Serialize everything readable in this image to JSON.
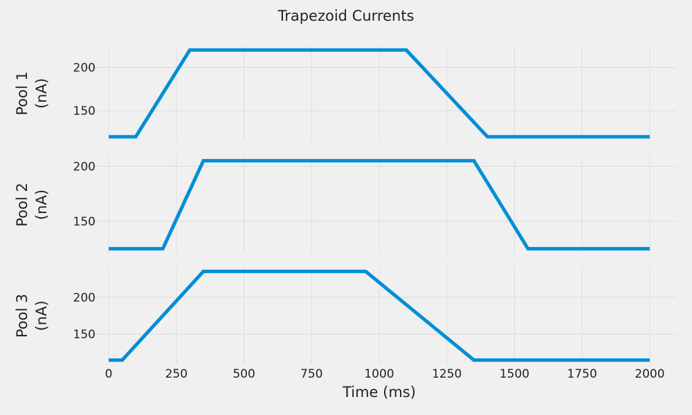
{
  "chart_data": {
    "type": "line",
    "title": "Trapezoid Currents",
    "xlabel": "Time (ms)",
    "xlim": [
      -100,
      2100
    ],
    "xticks": [
      0,
      250,
      500,
      750,
      1000,
      1250,
      1500,
      1750,
      2000
    ],
    "grid": true,
    "line_color": "#008fd5",
    "background": "#f0f0f0",
    "subplots": [
      {
        "ylabel": [
          "Pool 1",
          "(nA)"
        ],
        "ylim": [
          115,
          225
        ],
        "yticks": [
          150,
          200
        ],
        "x": [
          0,
          100,
          300,
          1100,
          1400,
          2000
        ],
        "y": [
          120,
          120,
          220,
          220,
          120,
          120
        ]
      },
      {
        "ylabel": [
          "Pool 2",
          "(nA)"
        ],
        "ylim": [
          121,
          209
        ],
        "yticks": [
          150,
          200
        ],
        "x": [
          0,
          200,
          350,
          1350,
          1550,
          2000
        ],
        "y": [
          125,
          125,
          205,
          205,
          125,
          125
        ]
      },
      {
        "ylabel": [
          "Pool 3",
          "(nA)"
        ],
        "ylim": [
          109,
          241
        ],
        "yticks": [
          150,
          200
        ],
        "x": [
          0,
          50,
          350,
          950,
          1350,
          2000
        ],
        "y": [
          115,
          115,
          235,
          235,
          115,
          115
        ]
      }
    ]
  }
}
